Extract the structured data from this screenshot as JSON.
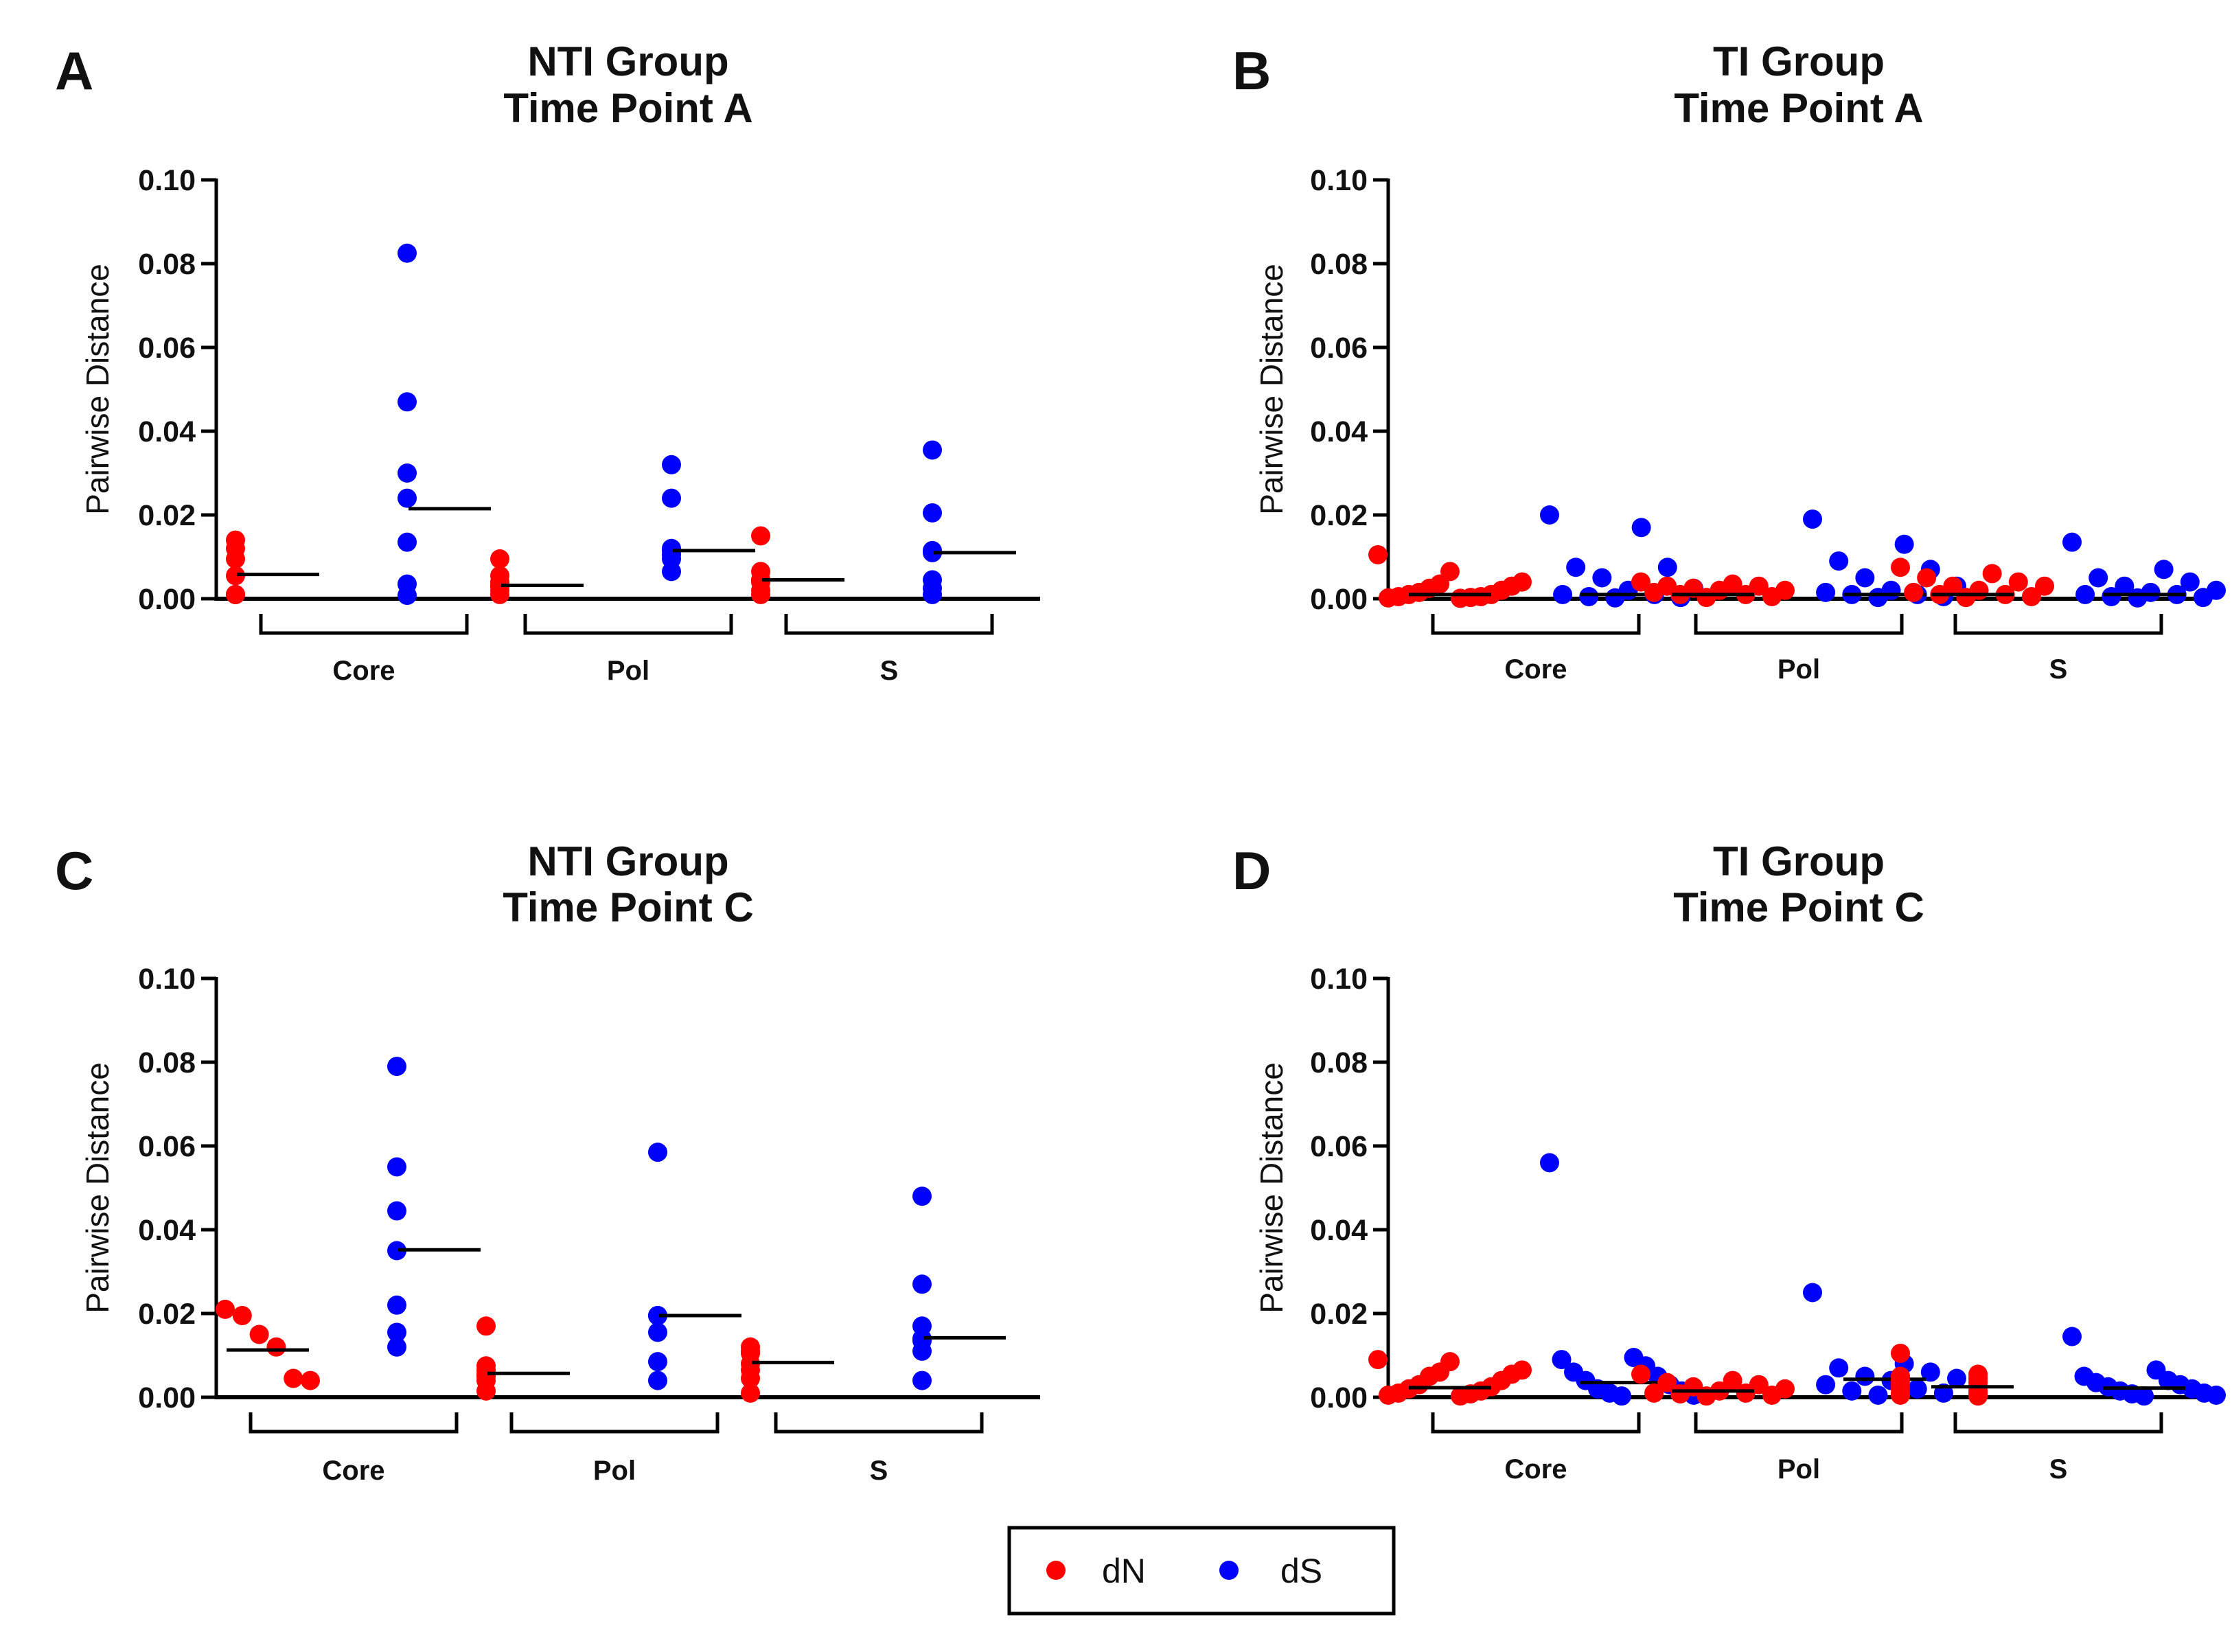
{
  "chart_data": [
    {
      "type": "scatter",
      "panel": "A",
      "title_line1": "NTI Group",
      "title_line2": "Time Point A",
      "ylabel": "Pairwise Distance",
      "ylim": [
        0,
        0.1
      ],
      "yticks": [
        "0.00",
        "0.02",
        "0.04",
        "0.06",
        "0.08",
        "0.10"
      ],
      "groups": [
        {
          "label": "Core",
          "dN": {
            "values": [
              0.014,
              0.012,
              0.0095,
              0.0055,
              0.001,
              0.001,
              0.001
            ],
            "median": 0.0058
          },
          "dS": {
            "values": [
              0.0825,
              0.047,
              0.03,
              0.024,
              0.0135,
              0.0035,
              0.0008
            ],
            "median": 0.0215
          }
        },
        {
          "label": "Pol",
          "dN": {
            "values": [
              0.0095,
              0.0055,
              0.004,
              0.003,
              0.003,
              0.002,
              0.001
            ],
            "median": 0.0032
          },
          "dS": {
            "values": [
              0.032,
              0.024,
              0.012,
              0.0115,
              0.0105,
              0.0095,
              0.0065
            ],
            "median": 0.0115
          }
        },
        {
          "label": "S",
          "dN": {
            "values": [
              0.015,
              0.0065,
              0.0045,
              0.0045,
              0.004,
              0.002,
              0.001
            ],
            "median": 0.0045
          },
          "dS": {
            "values": [
              0.0355,
              0.0205,
              0.0115,
              0.011,
              0.0045,
              0.0025,
              0.001
            ],
            "median": 0.011
          }
        }
      ]
    },
    {
      "type": "scatter",
      "panel": "B",
      "title_line1": "TI Group",
      "title_line2": "Time Point A",
      "ylabel": "Pairwise Distance",
      "ylim": [
        0,
        0.1
      ],
      "yticks": [
        "0.00",
        "0.02",
        "0.04",
        "0.06",
        "0.08",
        "0.10"
      ],
      "groups": [
        {
          "label": "Core",
          "dN": {
            "values": [
              0.0105,
              0.0065,
              0.004,
              0.0035,
              0.003,
              0.0025,
              0.002,
              0.0015,
              0.001,
              0.001,
              0.0005,
              0.0005,
              0.0003,
              0.0002,
              0.0001
            ],
            "median": 0.001
          },
          "dS": {
            "values": [
              0.02,
              0.017,
              0.0075,
              0.0075,
              0.005,
              0.0025,
              0.002,
              0.001,
              0.001,
              0.0005,
              0.0003,
              0.0002
            ],
            "median": 0.001
          }
        },
        {
          "label": "Pol",
          "dN": {
            "values": [
              0.004,
              0.0035,
              0.003,
              0.003,
              0.0025,
              0.002,
              0.002,
              0.0015,
              0.001,
              0.001,
              0.0005,
              0.0003
            ],
            "median": 0.001
          },
          "dS": {
            "values": [
              0.019,
              0.013,
              0.009,
              0.007,
              0.005,
              0.003,
              0.002,
              0.0015,
              0.001,
              0.001,
              0.0005,
              0.0003
            ],
            "median": 0.001
          }
        },
        {
          "label": "S",
          "dN": {
            "values": [
              0.0075,
              0.006,
              0.005,
              0.004,
              0.003,
              0.003,
              0.002,
              0.0015,
              0.001,
              0.001,
              0.0005,
              0.0003
            ],
            "median": 0.001
          },
          "dS": {
            "values": [
              0.0135,
              0.007,
              0.005,
              0.004,
              0.003,
              0.002,
              0.0015,
              0.001,
              0.001,
              0.0005,
              0.0003,
              0.0002
            ],
            "median": 0.001
          }
        }
      ]
    },
    {
      "type": "scatter",
      "panel": "C",
      "title_line1": "NTI Group",
      "title_line2": "Time Point C",
      "ylabel": "Pairwise Distance",
      "ylim": [
        0,
        0.1
      ],
      "yticks": [
        "0.00",
        "0.02",
        "0.04",
        "0.06",
        "0.08",
        "0.10"
      ],
      "groups": [
        {
          "label": "Core",
          "dN": {
            "values": [
              0.021,
              0.0195,
              0.015,
              0.012,
              0.0045,
              0.004
            ],
            "median": 0.0113
          },
          "dS": {
            "values": [
              0.079,
              0.055,
              0.0445,
              0.035,
              0.022,
              0.0155,
              0.012
            ],
            "median": 0.0352
          }
        },
        {
          "label": "Pol",
          "dN": {
            "values": [
              0.017,
              0.0075,
              0.0065,
              0.0055,
              0.005,
              0.004,
              0.0015
            ],
            "median": 0.0057
          },
          "dS": {
            "values": [
              0.0585,
              0.0195,
              0.0195,
              0.0195,
              0.0155,
              0.0085,
              0.004
            ],
            "median": 0.0195
          }
        },
        {
          "label": "S",
          "dN": {
            "values": [
              0.012,
              0.011,
              0.0105,
              0.008,
              0.0065,
              0.0045,
              0.001
            ],
            "median": 0.0083
          },
          "dS": {
            "values": [
              0.048,
              0.027,
              0.017,
              0.014,
              0.0135,
              0.011,
              0.004
            ],
            "median": 0.0142
          }
        }
      ]
    },
    {
      "type": "scatter",
      "panel": "D",
      "title_line1": "TI Group",
      "title_line2": "Time Point C",
      "ylabel": "Pairwise Distance",
      "ylim": [
        0,
        0.1
      ],
      "yticks": [
        "0.00",
        "0.02",
        "0.04",
        "0.06",
        "0.08",
        "0.10"
      ],
      "groups": [
        {
          "label": "Core",
          "dN": {
            "values": [
              0.009,
              0.0085,
              0.0065,
              0.006,
              0.0055,
              0.005,
              0.004,
              0.003,
              0.0025,
              0.002,
              0.0015,
              0.001,
              0.0008,
              0.0005,
              0.0003
            ],
            "median": 0.0023
          },
          "dS": {
            "values": [
              0.056,
              0.0095,
              0.009,
              0.0075,
              0.006,
              0.005,
              0.004,
              0.003,
              0.002,
              0.0015,
              0.001,
              0.0005,
              0.0003
            ],
            "median": 0.0035
          }
        },
        {
          "label": "Pol",
          "dN": {
            "values": [
              0.0055,
              0.004,
              0.0035,
              0.003,
              0.0025,
              0.002,
              0.0015,
              0.001,
              0.001,
              0.0008,
              0.0005,
              0.0003
            ],
            "median": 0.0015
          },
          "dS": {
            "values": [
              0.025,
              0.008,
              0.007,
              0.006,
              0.005,
              0.0045,
              0.004,
              0.003,
              0.002,
              0.0015,
              0.001,
              0.0005
            ],
            "median": 0.0043
          }
        },
        {
          "label": "S",
          "dN": {
            "values": [
              0.0105,
              0.0055,
              0.005,
              0.0045,
              0.004,
              0.0035,
              0.003,
              0.0025,
              0.002,
              0.0015,
              0.001,
              0.0008,
              0.0005,
              0.0003
            ],
            "median": 0.0025
          },
          "dS": {
            "values": [
              0.0145,
              0.0065,
              0.005,
              0.004,
              0.0035,
              0.003,
              0.0025,
              0.002,
              0.0015,
              0.001,
              0.0008,
              0.0005,
              0.0003
            ],
            "median": 0.0022
          }
        }
      ]
    }
  ],
  "legend": {
    "items": [
      {
        "label": "dN",
        "color": "#ff0000"
      },
      {
        "label": "dS",
        "color": "#0000ff"
      }
    ]
  },
  "colors": {
    "dN": "#ff0000",
    "dS": "#0000ff",
    "axis": "#000000",
    "median": "#000000"
  }
}
